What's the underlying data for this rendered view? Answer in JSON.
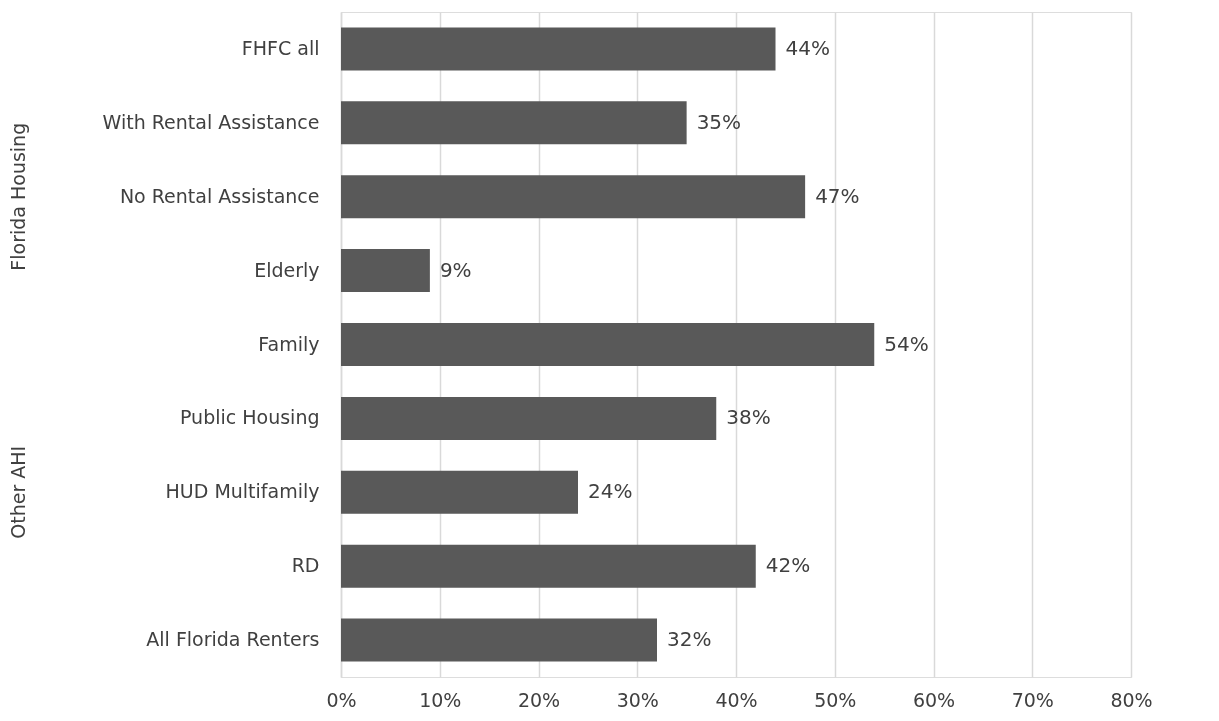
{
  "chart_data": {
    "type": "bar",
    "orientation": "horizontal",
    "categories": [
      "FHFC all",
      "With Rental Assistance",
      "No Rental Assistance",
      "Elderly",
      "Family",
      "Public Housing",
      "HUD Multifamily",
      "RD",
      "All Florida Renters"
    ],
    "values": [
      44,
      35,
      47,
      9,
      54,
      38,
      24,
      42,
      32
    ],
    "value_labels": [
      "44%",
      "35%",
      "47%",
      "9%",
      "54%",
      "38%",
      "24%",
      "42%",
      "32%"
    ],
    "color": "#595959",
    "xlim": [
      0,
      80
    ],
    "xticks": [
      {
        "value": 0,
        "label": "0%"
      },
      {
        "value": 10,
        "label": "10%"
      },
      {
        "value": 20,
        "label": "20%"
      },
      {
        "value": 30,
        "label": "30%"
      },
      {
        "value": 40,
        "label": "40%"
      },
      {
        "value": 50,
        "label": "50%"
      },
      {
        "value": 60,
        "label": "60%"
      },
      {
        "value": 70,
        "label": "70%"
      },
      {
        "value": 80,
        "label": "80%"
      }
    ],
    "annotations": [
      "Florida Housing",
      "Other AHI"
    ],
    "grid": "x"
  }
}
